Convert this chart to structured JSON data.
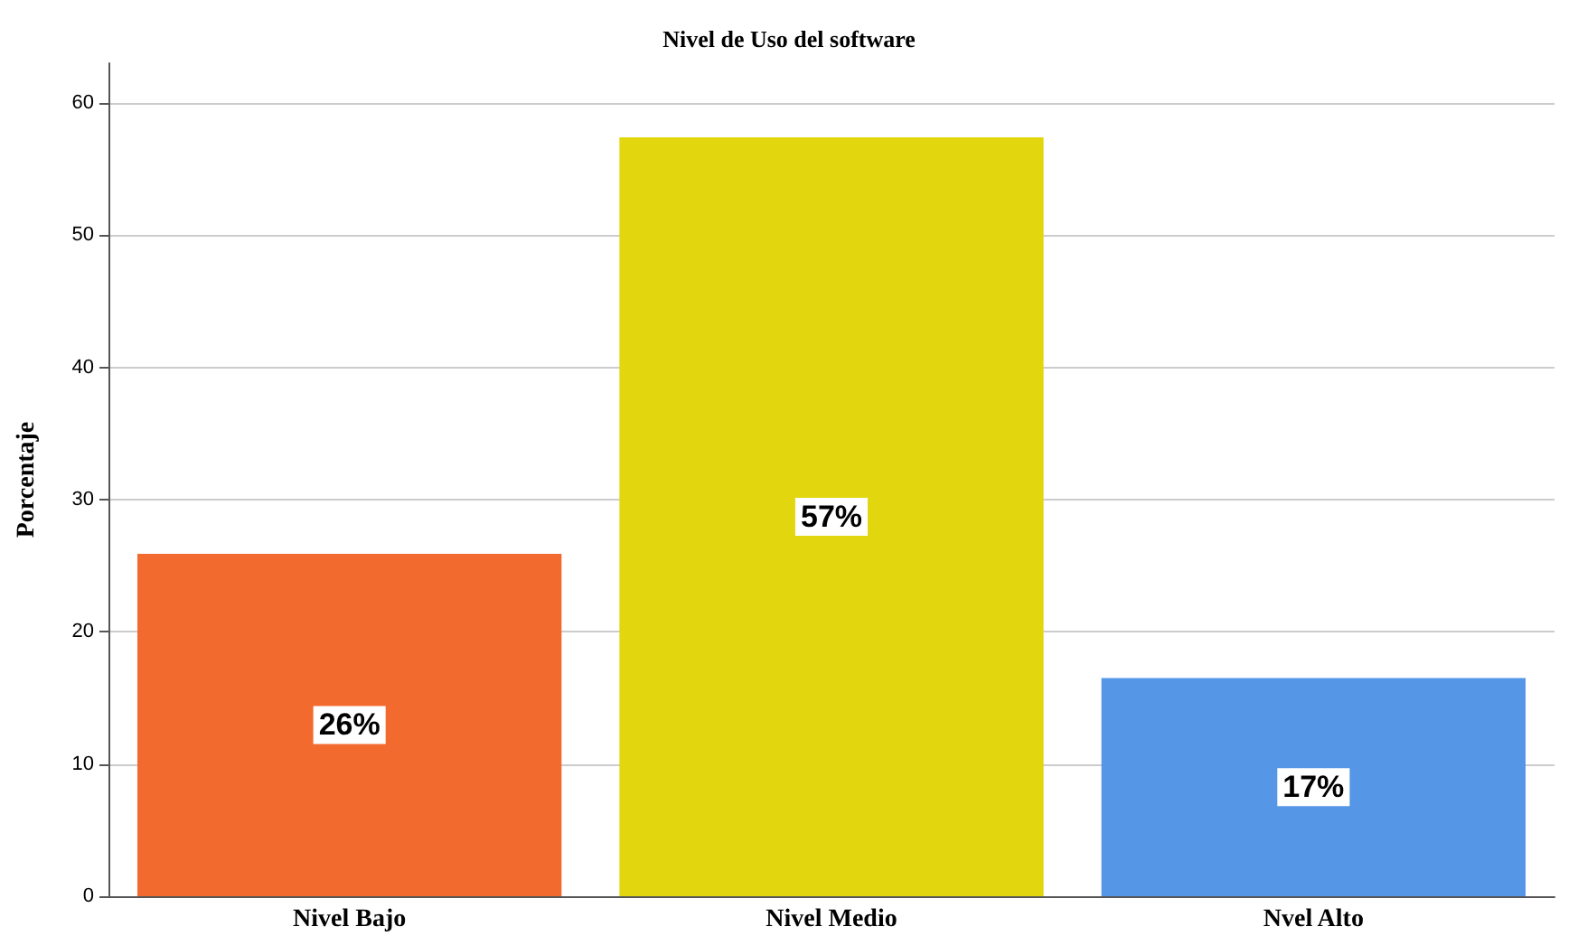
{
  "chart_data": {
    "type": "bar",
    "title": "Nivel de Uso del software",
    "ylabel": "Porcentaje",
    "categories": [
      "Nivel Bajo",
      "Nivel Medio",
      "Nvel Alto"
    ],
    "values": [
      25.9,
      57.4,
      16.5
    ],
    "colors": [
      "#f26a2e",
      "#e2d70f",
      "#5596e6"
    ],
    "value_labels": [
      "26%",
      "57%",
      "17%"
    ],
    "ylim": [
      0,
      63
    ],
    "yticks": [
      0,
      10,
      20,
      30,
      40,
      50,
      60
    ],
    "grid": "y"
  }
}
